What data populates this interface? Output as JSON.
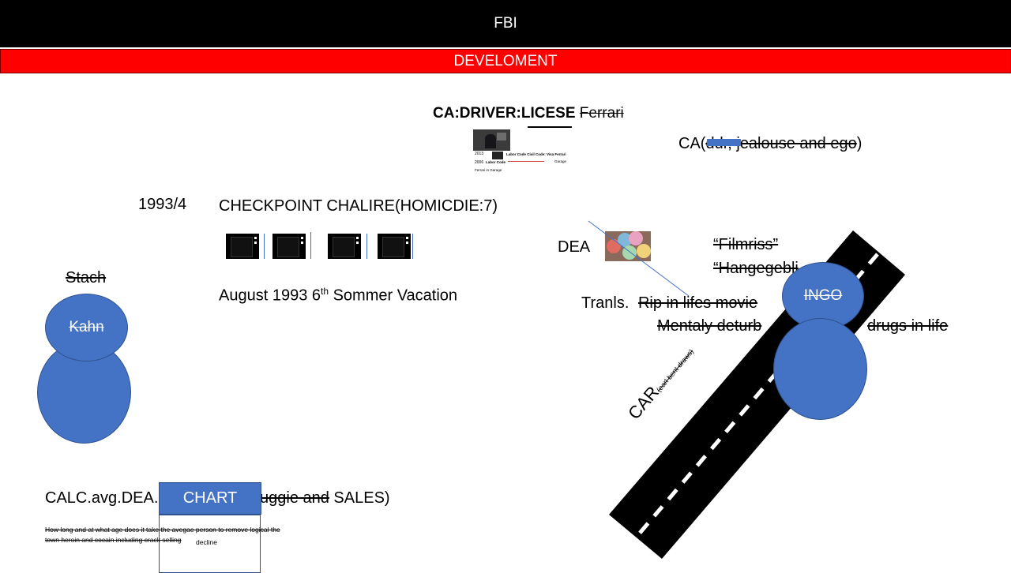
{
  "header": {
    "title": "FBI",
    "subtitle": "DEVELOMENT"
  },
  "license": {
    "label": "CA:DRIVER:LICESE",
    "struck": "Ferrari"
  },
  "thumbnail": {
    "year1": "2013",
    "year2": "2006",
    "line1": "Labor Code Civil Code: Visa Ferrari",
    "line2": "Labor Code",
    "garage": "Garage",
    "footer": "Ferrari in Garage"
  },
  "ca_jealous": {
    "prefix": "CA(",
    "struck": "ddr, jealouse and ego",
    "suffix": ")"
  },
  "year_label": "1993/4",
  "checkpoint": "CHECKPOINT CHALIRE(HOMICDIE:7)",
  "august": {
    "text": "August 1993 6",
    "sup": "th",
    "rest": " Sommer Vacation"
  },
  "dea": "DEA",
  "quotes": {
    "q1": "“Filmriss”",
    "q2": "“Hangegebli"
  },
  "translation": {
    "label": "Tranls.",
    "struck1": "Rip in lifes movie",
    "struck2": "Mentaly deturb",
    "struck3": "drugs in life"
  },
  "circles": {
    "ingo": "INGO",
    "kahn": "Kahn"
  },
  "stach": "Stach",
  "road": {
    "label": "CAR",
    "small": "(earl bent draws)"
  },
  "calc": {
    "prefix": "CALC.avg.DEA.",
    "struck": "uggie and",
    "suffix": " SALES)"
  },
  "chart_button": "CHART",
  "note": {
    "line1": "How long and at what age does it take the avegae person to remove logical the",
    "line2": "town heroin and cocain including crack selling",
    "decline": "decline"
  },
  "colors": {
    "accent": "#4472c4",
    "red": "#ff0000",
    "black": "#000000"
  }
}
